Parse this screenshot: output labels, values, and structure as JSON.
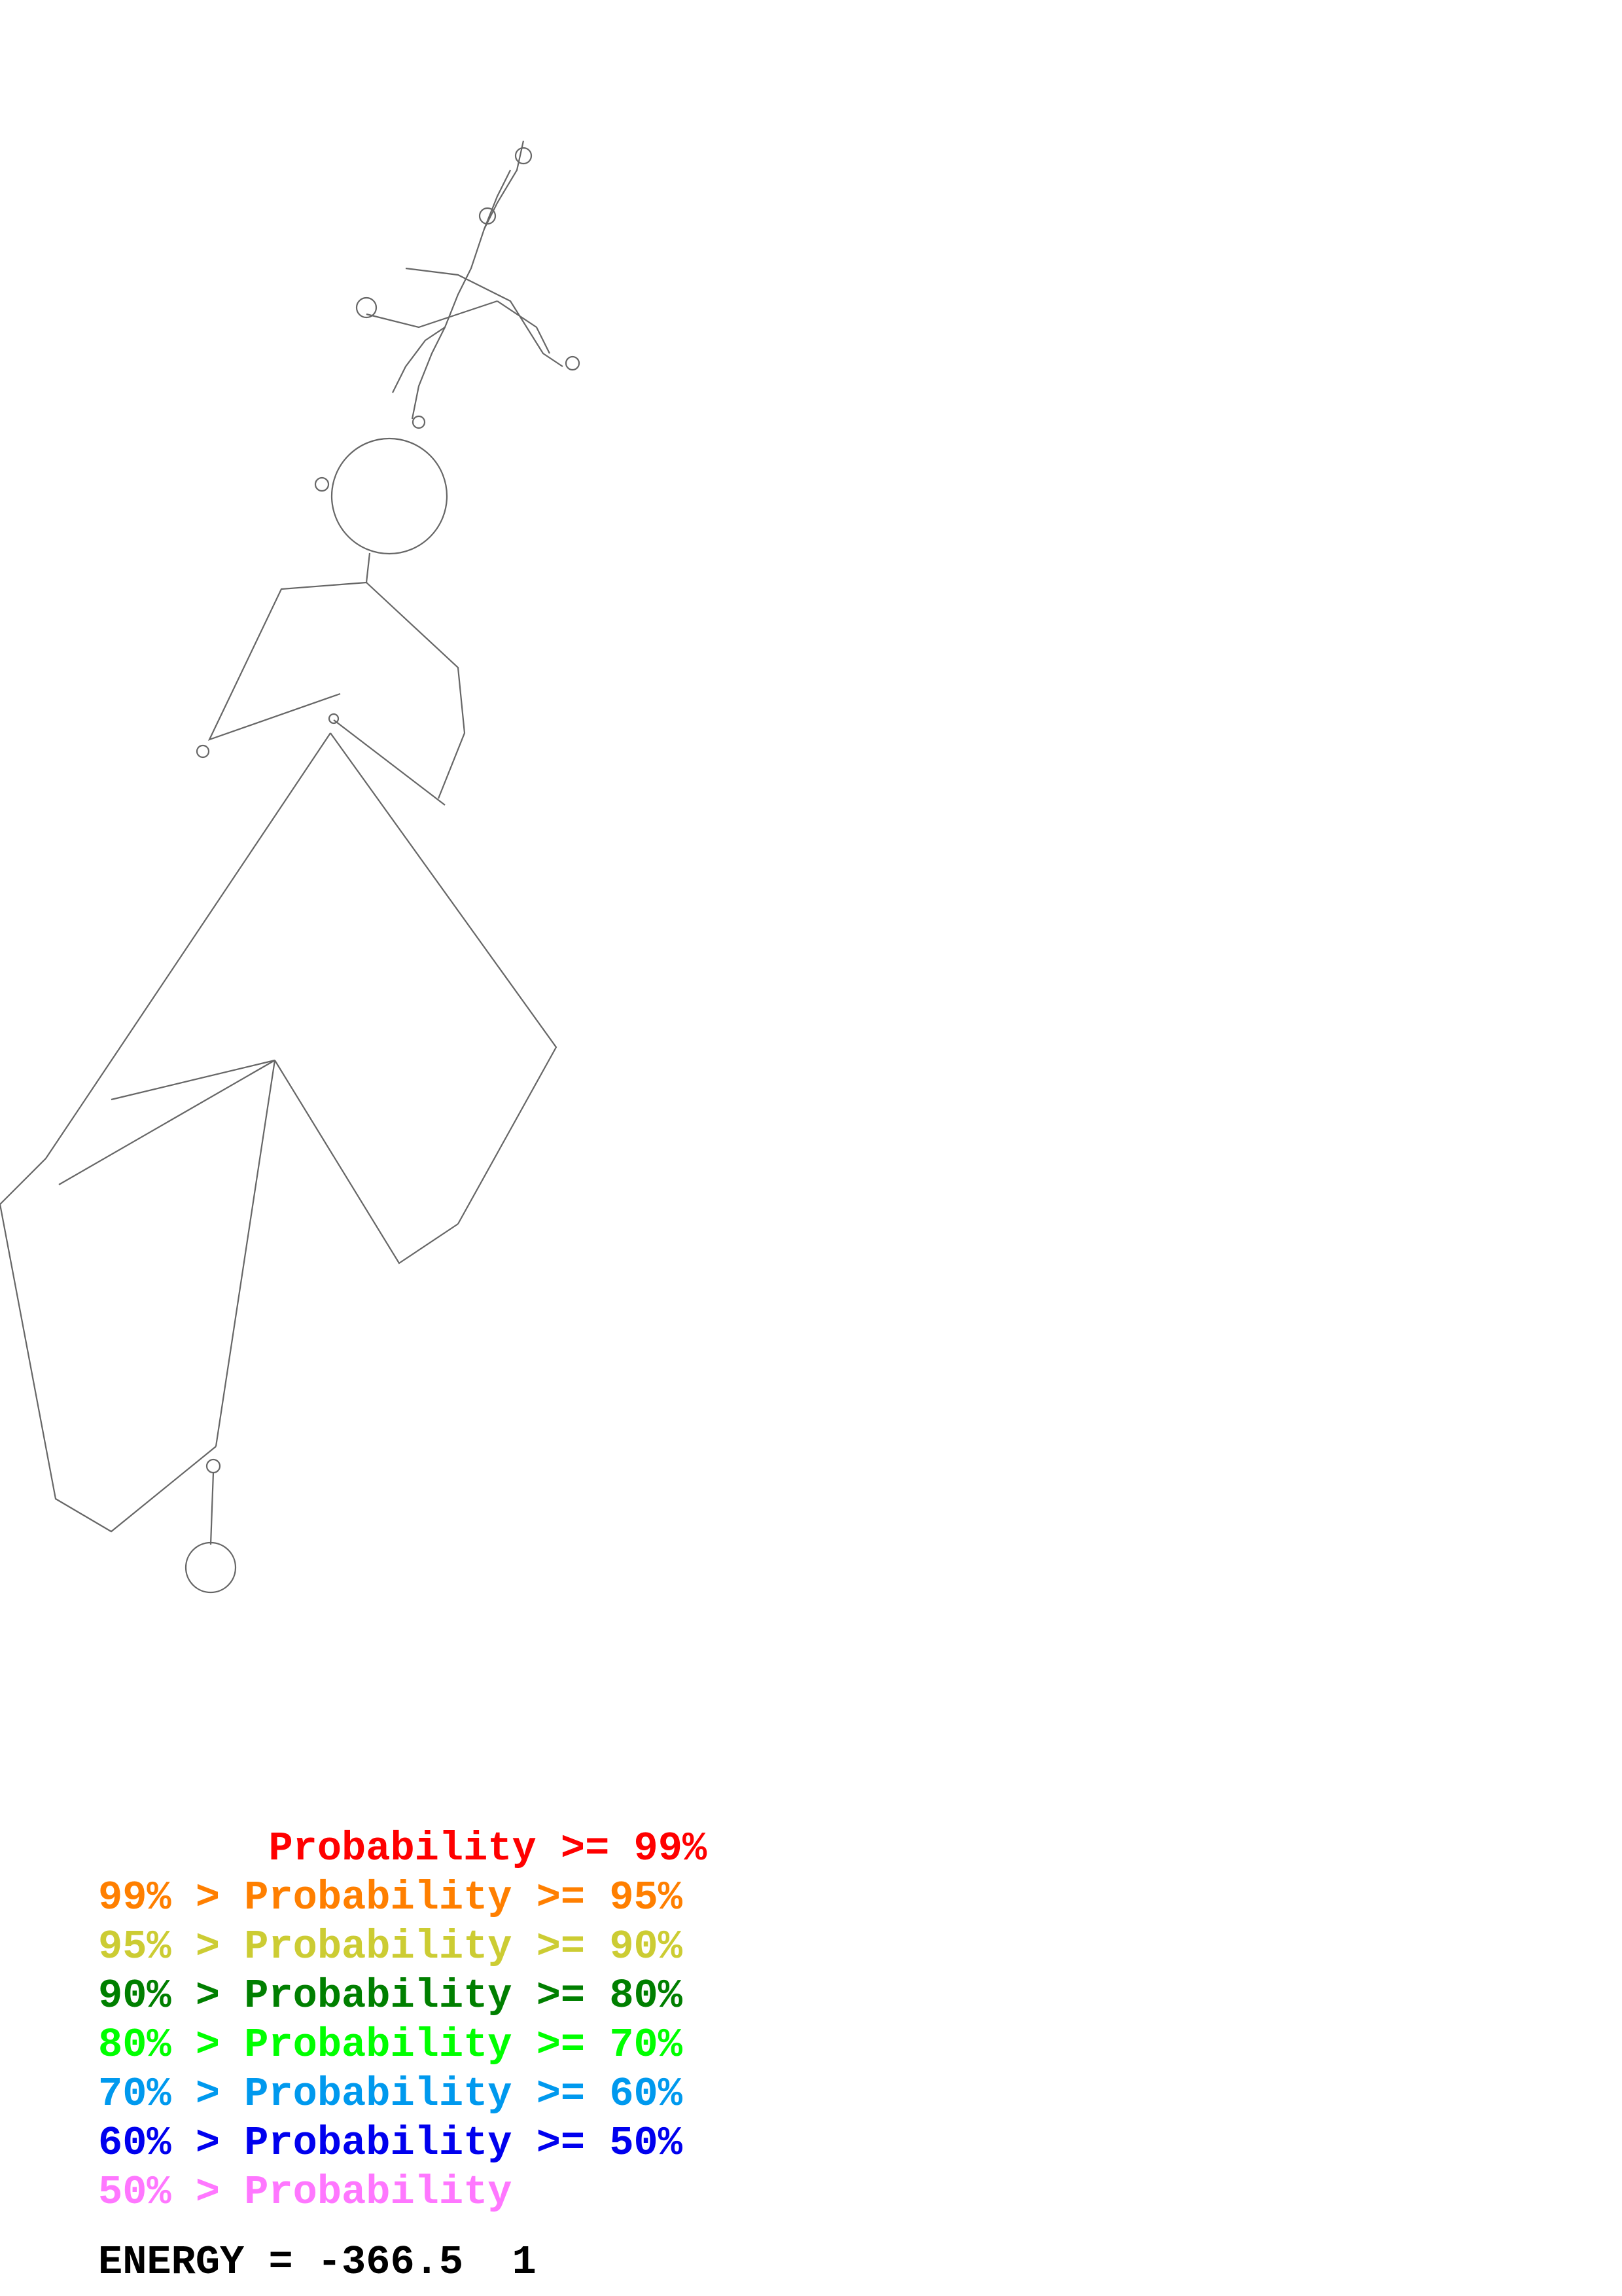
{
  "legend": [
    {
      "text": "       Probability >= 99%",
      "color": "#ff0000"
    },
    {
      "text": "99% > Probability >= 95%",
      "color": "#ff7f00"
    },
    {
      "text": "95% > Probability >= 90%",
      "color": "#cccc33"
    },
    {
      "text": "90% > Probability >= 80%",
      "color": "#007f00"
    },
    {
      "text": "80% > Probability >= 70%",
      "color": "#00ff00"
    },
    {
      "text": "70% > Probability >= 60%",
      "color": "#0099ee"
    },
    {
      "text": "60% > Probability >= 50%",
      "color": "#0000ee"
    },
    {
      "text": "50% > Probability",
      "color": "#ff77ff"
    }
  ],
  "energy": "ENERGY = -366.5  1"
}
